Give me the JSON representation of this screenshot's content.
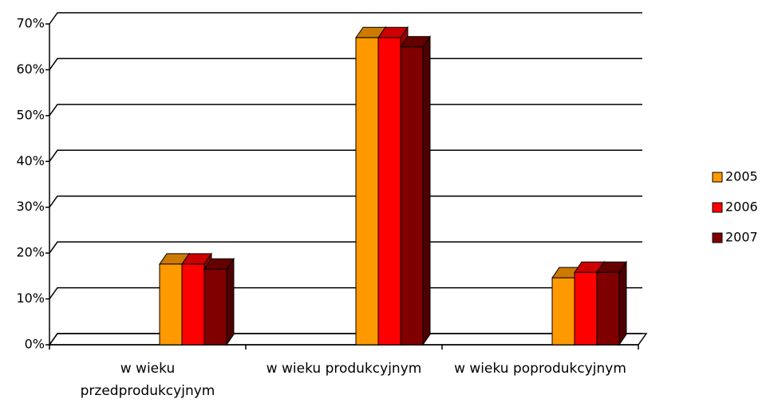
{
  "chart_data": {
    "type": "bar3d",
    "categories": [
      "w wieku przedprodukcyjnym",
      "w wieku produkcyjnym",
      "w wieku poprodukcyjnym"
    ],
    "series": [
      {
        "name": "2005",
        "color": "#ff9900",
        "values": [
          17.6,
          67,
          14.6
        ]
      },
      {
        "name": "2006",
        "color": "#ff0000",
        "values": [
          17.6,
          67,
          15.8
        ]
      },
      {
        "name": "2007",
        "color": "#800000",
        "values": [
          16.5,
          65,
          15.8
        ]
      }
    ],
    "ylim": [
      0,
      70
    ],
    "yticks": [
      {
        "value": 0,
        "label": "0%"
      },
      {
        "value": 10,
        "label": "10%"
      },
      {
        "value": 20,
        "label": "20%"
      },
      {
        "value": 30,
        "label": "30%"
      },
      {
        "value": 40,
        "label": "40%"
      },
      {
        "value": 50,
        "label": "50%"
      },
      {
        "value": 60,
        "label": "60%"
      },
      {
        "value": 70,
        "label": "70%"
      }
    ],
    "grid": true,
    "legend": "right"
  }
}
